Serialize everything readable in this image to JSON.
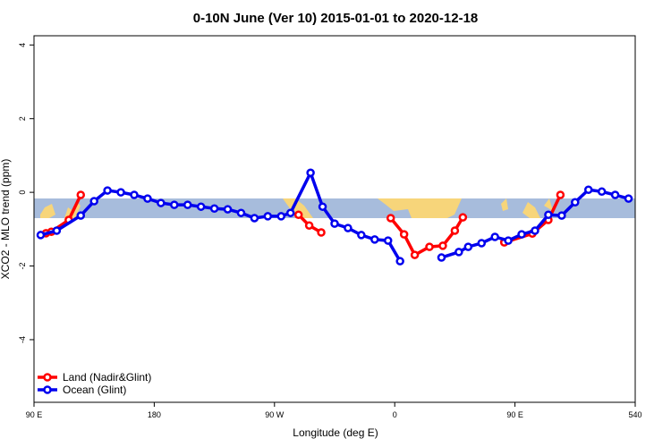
{
  "chart_data": {
    "type": "line",
    "title": "0-10N June (Ver 10)   2015-01-01 to 2020-12-18",
    "xlabel": "Longitude (deg E)",
    "ylabel": "XCO2 - MLO trend (ppm)",
    "xlim": [
      90,
      540
    ],
    "ylim": [
      -5.7,
      4.25
    ],
    "xticks": [
      {
        "value": 90,
        "label": "90 E"
      },
      180,
      {
        "value": 270,
        "label": "90 W"
      },
      {
        "value": 360,
        "label": "0"
      },
      {
        "value": 450,
        "label": "90 E"
      },
      540
    ],
    "yticks": [
      -4,
      -2,
      0,
      2,
      4
    ],
    "legend": "bottom-left",
    "series": [
      {
        "name": "Land (Nadir&Glint)",
        "color": "#ff0000",
        "x": [
          99,
          103,
          116,
          125,
          200,
          288,
          296,
          305,
          330,
          357,
          367,
          375,
          386,
          396,
          405,
          411,
          425,
          442,
          463,
          475,
          484
        ],
        "values": [
          -1.11,
          -1.07,
          -0.75,
          -0.07,
          null,
          -0.61,
          -0.9,
          -1.09,
          null,
          -0.7,
          -1.14,
          -1.7,
          -1.48,
          -1.45,
          -1.04,
          -0.68,
          null,
          -1.36,
          -1.12,
          -0.75,
          -0.07
        ]
      },
      {
        "name": "Ocean (Glint)",
        "color": "#0000ee",
        "x": [
          95,
          107,
          125,
          135,
          145,
          155,
          165,
          175,
          185,
          195,
          205,
          215,
          225,
          235,
          245,
          255,
          265,
          275,
          282,
          297,
          306,
          315,
          325,
          335,
          345,
          355,
          364,
          380,
          395,
          408,
          415,
          425,
          435,
          445,
          455,
          465,
          475,
          485,
          495,
          505,
          515,
          525,
          535
        ],
        "values": [
          -1.16,
          -1.04,
          -0.63,
          -0.24,
          0.05,
          0,
          -0.07,
          -0.17,
          -0.29,
          -0.34,
          -0.34,
          -0.39,
          -0.44,
          -0.46,
          -0.56,
          -0.7,
          -0.65,
          -0.65,
          -0.56,
          0.53,
          -0.39,
          -0.85,
          -0.97,
          -1.16,
          -1.28,
          -1.31,
          -1.87,
          null,
          -1.77,
          -1.62,
          -1.48,
          -1.38,
          -1.21,
          -1.31,
          -1.14,
          -1.04,
          -0.61,
          -0.63,
          -0.27,
          0.07,
          0.02,
          -0.07,
          -0.17
        ]
      }
    ]
  }
}
